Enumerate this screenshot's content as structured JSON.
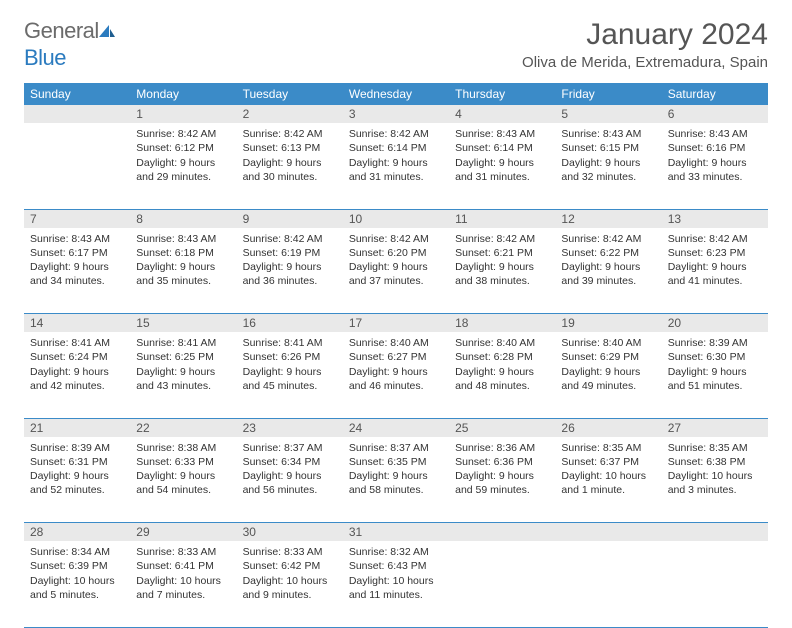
{
  "brand": {
    "part1": "General",
    "part2": "Blue"
  },
  "title": "January 2024",
  "location": "Oliva de Merida, Extremadura, Spain",
  "colors": {
    "header_bg": "#3b8bc8",
    "header_text": "#ffffff",
    "daynum_bg": "#e9e9e9",
    "rule": "#3b8bc8",
    "logo_gray": "#6b6b6b",
    "logo_blue": "#2b7bbf"
  },
  "weekdays": [
    "Sunday",
    "Monday",
    "Tuesday",
    "Wednesday",
    "Thursday",
    "Friday",
    "Saturday"
  ],
  "start_offset": 1,
  "days": [
    {
      "n": "1",
      "sunrise": "8:42 AM",
      "sunset": "6:12 PM",
      "daylight": "9 hours and 29 minutes."
    },
    {
      "n": "2",
      "sunrise": "8:42 AM",
      "sunset": "6:13 PM",
      "daylight": "9 hours and 30 minutes."
    },
    {
      "n": "3",
      "sunrise": "8:42 AM",
      "sunset": "6:14 PM",
      "daylight": "9 hours and 31 minutes."
    },
    {
      "n": "4",
      "sunrise": "8:43 AM",
      "sunset": "6:14 PM",
      "daylight": "9 hours and 31 minutes."
    },
    {
      "n": "5",
      "sunrise": "8:43 AM",
      "sunset": "6:15 PM",
      "daylight": "9 hours and 32 minutes."
    },
    {
      "n": "6",
      "sunrise": "8:43 AM",
      "sunset": "6:16 PM",
      "daylight": "9 hours and 33 minutes."
    },
    {
      "n": "7",
      "sunrise": "8:43 AM",
      "sunset": "6:17 PM",
      "daylight": "9 hours and 34 minutes."
    },
    {
      "n": "8",
      "sunrise": "8:43 AM",
      "sunset": "6:18 PM",
      "daylight": "9 hours and 35 minutes."
    },
    {
      "n": "9",
      "sunrise": "8:42 AM",
      "sunset": "6:19 PM",
      "daylight": "9 hours and 36 minutes."
    },
    {
      "n": "10",
      "sunrise": "8:42 AM",
      "sunset": "6:20 PM",
      "daylight": "9 hours and 37 minutes."
    },
    {
      "n": "11",
      "sunrise": "8:42 AM",
      "sunset": "6:21 PM",
      "daylight": "9 hours and 38 minutes."
    },
    {
      "n": "12",
      "sunrise": "8:42 AM",
      "sunset": "6:22 PM",
      "daylight": "9 hours and 39 minutes."
    },
    {
      "n": "13",
      "sunrise": "8:42 AM",
      "sunset": "6:23 PM",
      "daylight": "9 hours and 41 minutes."
    },
    {
      "n": "14",
      "sunrise": "8:41 AM",
      "sunset": "6:24 PM",
      "daylight": "9 hours and 42 minutes."
    },
    {
      "n": "15",
      "sunrise": "8:41 AM",
      "sunset": "6:25 PM",
      "daylight": "9 hours and 43 minutes."
    },
    {
      "n": "16",
      "sunrise": "8:41 AM",
      "sunset": "6:26 PM",
      "daylight": "9 hours and 45 minutes."
    },
    {
      "n": "17",
      "sunrise": "8:40 AM",
      "sunset": "6:27 PM",
      "daylight": "9 hours and 46 minutes."
    },
    {
      "n": "18",
      "sunrise": "8:40 AM",
      "sunset": "6:28 PM",
      "daylight": "9 hours and 48 minutes."
    },
    {
      "n": "19",
      "sunrise": "8:40 AM",
      "sunset": "6:29 PM",
      "daylight": "9 hours and 49 minutes."
    },
    {
      "n": "20",
      "sunrise": "8:39 AM",
      "sunset": "6:30 PM",
      "daylight": "9 hours and 51 minutes."
    },
    {
      "n": "21",
      "sunrise": "8:39 AM",
      "sunset": "6:31 PM",
      "daylight": "9 hours and 52 minutes."
    },
    {
      "n": "22",
      "sunrise": "8:38 AM",
      "sunset": "6:33 PM",
      "daylight": "9 hours and 54 minutes."
    },
    {
      "n": "23",
      "sunrise": "8:37 AM",
      "sunset": "6:34 PM",
      "daylight": "9 hours and 56 minutes."
    },
    {
      "n": "24",
      "sunrise": "8:37 AM",
      "sunset": "6:35 PM",
      "daylight": "9 hours and 58 minutes."
    },
    {
      "n": "25",
      "sunrise": "8:36 AM",
      "sunset": "6:36 PM",
      "daylight": "9 hours and 59 minutes."
    },
    {
      "n": "26",
      "sunrise": "8:35 AM",
      "sunset": "6:37 PM",
      "daylight": "10 hours and 1 minute."
    },
    {
      "n": "27",
      "sunrise": "8:35 AM",
      "sunset": "6:38 PM",
      "daylight": "10 hours and 3 minutes."
    },
    {
      "n": "28",
      "sunrise": "8:34 AM",
      "sunset": "6:39 PM",
      "daylight": "10 hours and 5 minutes."
    },
    {
      "n": "29",
      "sunrise": "8:33 AM",
      "sunset": "6:41 PM",
      "daylight": "10 hours and 7 minutes."
    },
    {
      "n": "30",
      "sunrise": "8:33 AM",
      "sunset": "6:42 PM",
      "daylight": "10 hours and 9 minutes."
    },
    {
      "n": "31",
      "sunrise": "8:32 AM",
      "sunset": "6:43 PM",
      "daylight": "10 hours and 11 minutes."
    }
  ],
  "labels": {
    "sunrise": "Sunrise:",
    "sunset": "Sunset:",
    "daylight": "Daylight:"
  }
}
